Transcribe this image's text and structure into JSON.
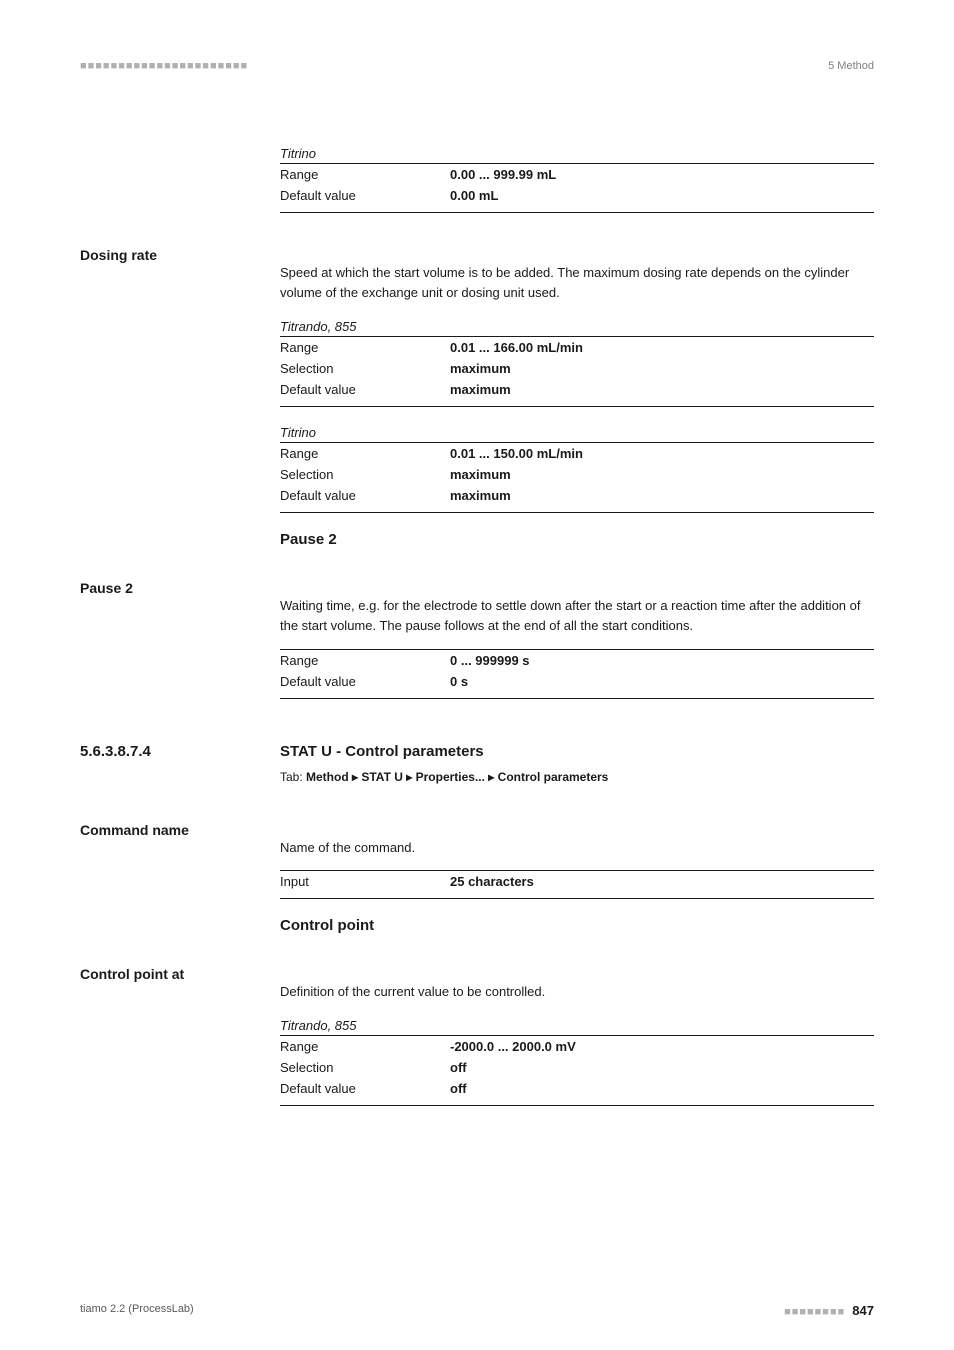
{
  "header": {
    "dashes": "■■■■■■■■■■■■■■■■■■■■■■",
    "chapter": "5 Method"
  },
  "titrino_block1": {
    "caption": "Titrino",
    "rows": [
      {
        "k": "Range",
        "v": "0.00 ... 999.99 mL"
      },
      {
        "k": "Default value",
        "v": "0.00 mL"
      }
    ]
  },
  "dosing_rate": {
    "label": "Dosing rate",
    "para": "Speed at which the start volume is to be added. The maximum dosing rate depends on the cylinder volume of the exchange unit or dosing unit used.",
    "titrando": {
      "caption": "Titrando, 855",
      "rows": [
        {
          "k": "Range",
          "v": "0.01 ... 166.00 mL/min"
        },
        {
          "k": "Selection",
          "v": "maximum"
        },
        {
          "k": "Default value",
          "v": "maximum"
        }
      ]
    },
    "titrino": {
      "caption": "Titrino",
      "rows": [
        {
          "k": "Range",
          "v": "0.01 ... 150.00 mL/min"
        },
        {
          "k": "Selection",
          "v": "maximum"
        },
        {
          "k": "Default value",
          "v": "maximum"
        }
      ]
    }
  },
  "pause2": {
    "heading": "Pause 2",
    "label": "Pause 2",
    "para": "Waiting time, e.g. for the electrode to settle down after the start or a reaction time after the addition of the start volume. The pause follows at the end of all the start conditions.",
    "rows": [
      {
        "k": "Range",
        "v": "0 ... 999999 s"
      },
      {
        "k": "Default value",
        "v": "0 s"
      }
    ]
  },
  "section": {
    "num": "5.6.3.8.7.4",
    "title": "STAT U - Control parameters",
    "tab_prefix": "Tab: ",
    "tab_path": "Method ▸ STAT U ▸ Properties... ▸ Control parameters"
  },
  "command_name": {
    "label": "Command name",
    "para": "Name of the command.",
    "rows": [
      {
        "k": "Input",
        "v": "25 characters"
      }
    ]
  },
  "control_point": {
    "heading": "Control point",
    "label": "Control point at",
    "para": "Definition of the current value to be controlled.",
    "titrando": {
      "caption": "Titrando, 855",
      "rows": [
        {
          "k": "Range",
          "v": "-2000.0 ... 2000.0 mV"
        },
        {
          "k": "Selection",
          "v": "off"
        },
        {
          "k": "Default value",
          "v": "off"
        }
      ]
    }
  },
  "footer": {
    "left": "tiamo 2.2 (ProcessLab)",
    "dashes": "■■■■■■■■",
    "page": "847"
  }
}
